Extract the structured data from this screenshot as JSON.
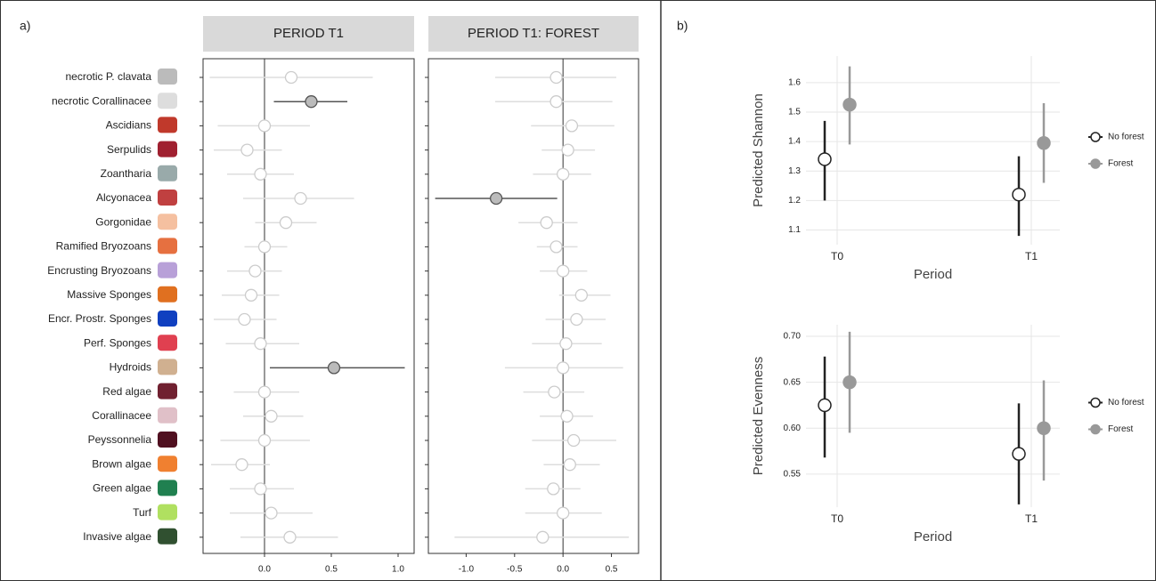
{
  "panels": [
    "a)",
    "b)"
  ],
  "chart_data": [
    {
      "type": "forest",
      "categories": [
        "necrotic P. clavata",
        "necrotic Corallinacee",
        "Ascidians",
        "Serpulids",
        "Zoantharia",
        "Alcyonacea",
        "Gorgonidae",
        "Ramified Bryozoans",
        "Encrusting Bryozoans",
        "Massive Sponges",
        "Encr. Prostr. Sponges",
        "Perf. Sponges",
        "Hydroids",
        "Red algae",
        "Corallinacee",
        "Peyssonnelia",
        "Brown algae",
        "Green algae",
        "Turf",
        "Invasive algae"
      ],
      "color": "#dddddd",
      "highlight_color": "#555555",
      "facets": [
        {
          "title": "PERIOD T1",
          "values": [
            0.2,
            0.35,
            0.0,
            -0.13,
            -0.03,
            0.27,
            0.16,
            0.0,
            -0.07,
            -0.1,
            -0.15,
            -0.03,
            0.52,
            0.0,
            0.05,
            0.0,
            -0.17,
            -0.03,
            0.05,
            0.19
          ],
          "lower": [
            -0.41,
            0.07,
            -0.35,
            -0.38,
            -0.28,
            -0.16,
            -0.07,
            -0.15,
            -0.28,
            -0.32,
            -0.38,
            -0.29,
            0.04,
            -0.23,
            -0.16,
            -0.33,
            -0.4,
            -0.26,
            -0.26,
            -0.18
          ],
          "upper": [
            0.81,
            0.62,
            0.34,
            0.13,
            0.22,
            0.67,
            0.39,
            0.17,
            0.13,
            0.11,
            0.09,
            0.26,
            1.05,
            0.26,
            0.29,
            0.34,
            0.04,
            0.22,
            0.36,
            0.55
          ],
          "highlighted": [
            1,
            12
          ],
          "xlim": [
            -0.46,
            1.12
          ],
          "xticks": [
            {
              "value": 0,
              "label": "0.0"
            },
            0.5,
            {
              "value": 1,
              "label": "1.0"
            }
          ]
        },
        {
          "title": "PERIOD T1: FOREST",
          "values": [
            -0.07,
            -0.07,
            0.09,
            0.05,
            0.0,
            -0.69,
            -0.17,
            -0.07,
            0.0,
            0.19,
            0.14,
            0.03,
            0.0,
            -0.09,
            0.04,
            0.11,
            0.07,
            -0.1,
            0.0,
            -0.21
          ],
          "lower": [
            -0.7,
            -0.7,
            -0.33,
            -0.22,
            -0.31,
            -1.32,
            -0.46,
            -0.27,
            -0.24,
            -0.04,
            -0.18,
            -0.32,
            -0.6,
            -0.41,
            -0.24,
            -0.32,
            -0.2,
            -0.39,
            -0.39,
            -1.12
          ],
          "upper": [
            0.55,
            0.51,
            0.53,
            0.33,
            0.29,
            -0.06,
            0.15,
            0.15,
            0.25,
            0.49,
            0.44,
            0.4,
            0.62,
            0.22,
            0.31,
            0.55,
            0.38,
            0.18,
            0.4,
            0.68
          ],
          "highlighted": [
            5
          ],
          "xlim": [
            -1.39,
            0.78
          ],
          "xticks": [
            {
              "value": -1,
              "label": "-1.0"
            },
            -0.5,
            {
              "value": 0,
              "label": "0.0"
            },
            0.5
          ]
        }
      ]
    },
    {
      "type": "pointrange",
      "y_label": "Predicted Shannon",
      "x_label": "Period",
      "categories": [
        "T0",
        "T1"
      ],
      "series": [
        {
          "name": "No forest",
          "color": "#222222",
          "fill": "#ffffff",
          "values": [
            1.34,
            1.22
          ],
          "lower": [
            1.2,
            1.08
          ],
          "upper": [
            1.47,
            1.35
          ]
        },
        {
          "name": "Forest",
          "color": "#999999",
          "fill": "#999999",
          "values": [
            1.525,
            1.395
          ],
          "lower": [
            1.39,
            1.26
          ],
          "upper": [
            1.655,
            1.53
          ]
        }
      ],
      "ylim": [
        1.05,
        1.69
      ],
      "yticks": [
        1.1,
        1.2,
        1.3,
        1.4,
        1.5,
        1.6
      ],
      "grid": true
    },
    {
      "type": "pointrange",
      "y_label": "Predicted Evenness",
      "x_label": "Period",
      "categories": [
        "T0",
        "T1"
      ],
      "series": [
        {
          "name": "No forest",
          "color": "#222222",
          "fill": "#ffffff",
          "values": [
            0.625,
            0.572
          ],
          "lower": [
            0.568,
            0.517
          ],
          "upper": [
            0.678,
            0.627
          ]
        },
        {
          "name": "Forest",
          "color": "#999999",
          "fill": "#999999",
          "values": [
            0.65,
            0.6
          ],
          "lower": [
            0.595,
            0.543
          ],
          "upper": [
            0.705,
            0.652
          ]
        }
      ],
      "ylim": [
        0.514,
        0.7126
      ],
      "yticks": [
        0.55,
        {
          "value": 0.6,
          "label": "0.60"
        },
        0.65,
        {
          "value": 0.7,
          "label": "0.70"
        }
      ],
      "grid": true
    }
  ]
}
